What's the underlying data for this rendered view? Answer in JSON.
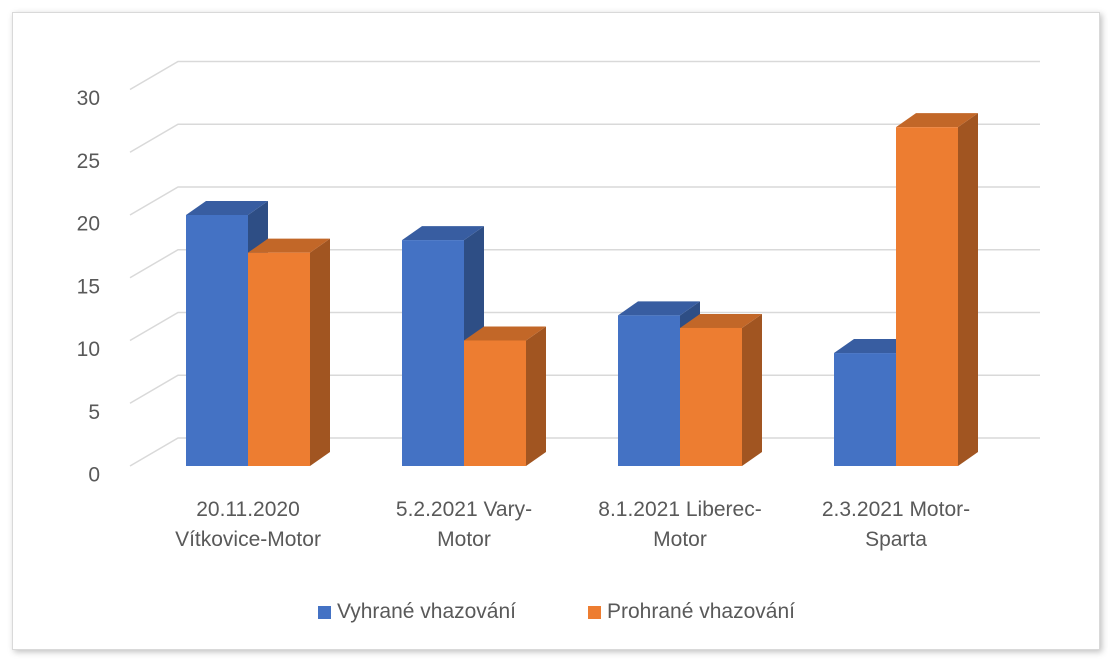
{
  "chart_data": {
    "type": "bar3d",
    "categories": [
      "20.11.2020 Vítkovice-Motor",
      "5.2.2021 Vary-Motor",
      "8.1.2021 Liberec-Motor",
      "2.3.2021 Motor-Sparta"
    ],
    "series": [
      {
        "name": "Vyhrané vhazování",
        "color": "#4472c4",
        "values": [
          20,
          18,
          12,
          9
        ]
      },
      {
        "name": "Prohrané vhazování",
        "color": "#ed7d31",
        "values": [
          17,
          10,
          11,
          27
        ]
      }
    ],
    "ylim": [
      0,
      30
    ],
    "yticks": [
      0,
      5,
      10,
      15,
      20,
      25,
      30
    ],
    "grid": true,
    "legend": "bottom"
  }
}
